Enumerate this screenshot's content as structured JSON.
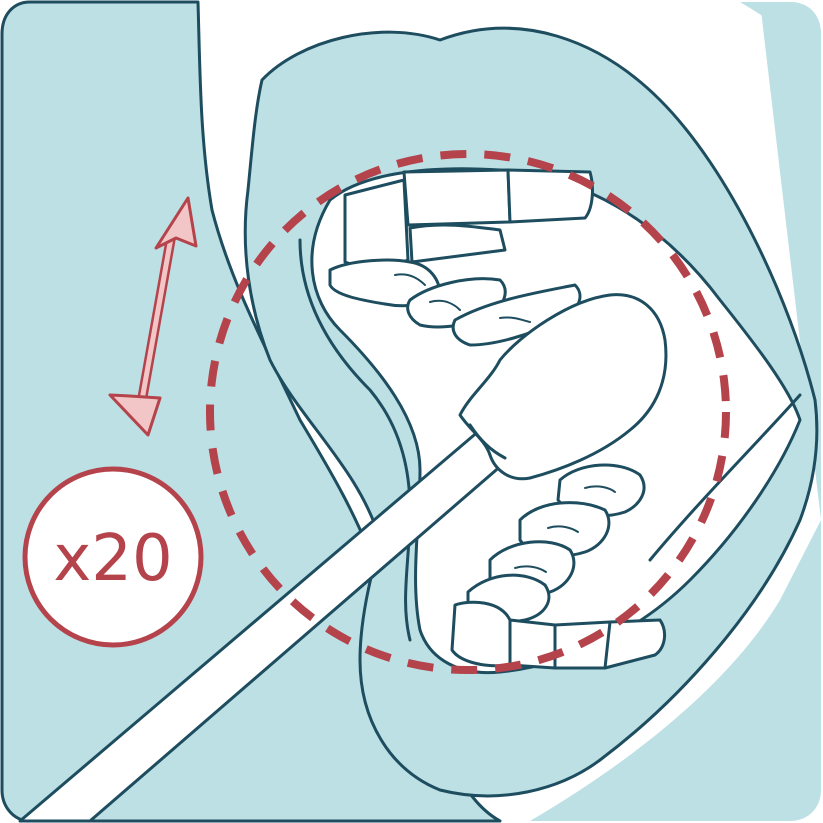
{
  "illustration": {
    "subject": "swab-rub-inside-cheek",
    "icons": [
      "swab-icon",
      "mouth-icon",
      "double-arrow-icon",
      "dashed-circle-icon"
    ],
    "colors": {
      "skin": "#bde0e5",
      "outline": "#1d4d5f",
      "accent": "#b5434b",
      "arrow_fill": "#f2c6c6",
      "background": "#ffffff"
    }
  },
  "badge": {
    "count_label": "x20"
  }
}
